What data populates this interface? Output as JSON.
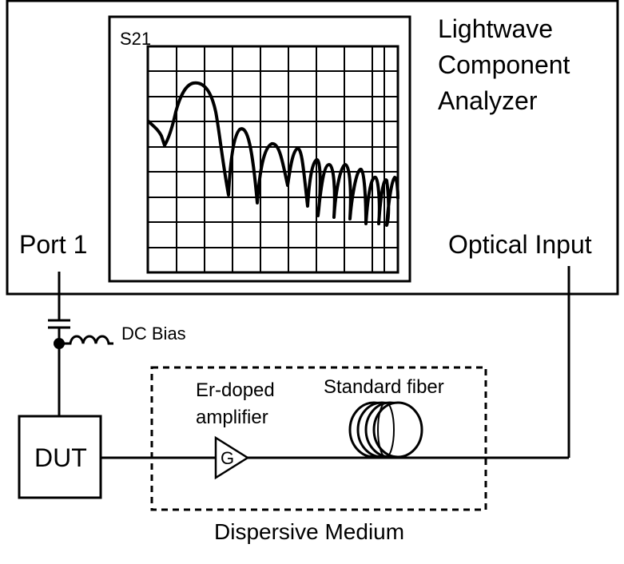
{
  "instrument": {
    "title_lines": [
      "Lightwave",
      "Component",
      "Analyzer"
    ],
    "screen_label": "S21",
    "port_label": "Port 1",
    "optical_input_label": "Optical Input"
  },
  "bias": {
    "label": "DC Bias"
  },
  "dut": {
    "label": "DUT"
  },
  "medium": {
    "label": "Dispersive Medium",
    "amplifier_lines": [
      "Er-doped",
      "amplifier"
    ],
    "amplifier_symbol": "G",
    "fiber_label": "Standard fiber"
  },
  "colors": {
    "line": "#000000",
    "background": "#ffffff"
  }
}
